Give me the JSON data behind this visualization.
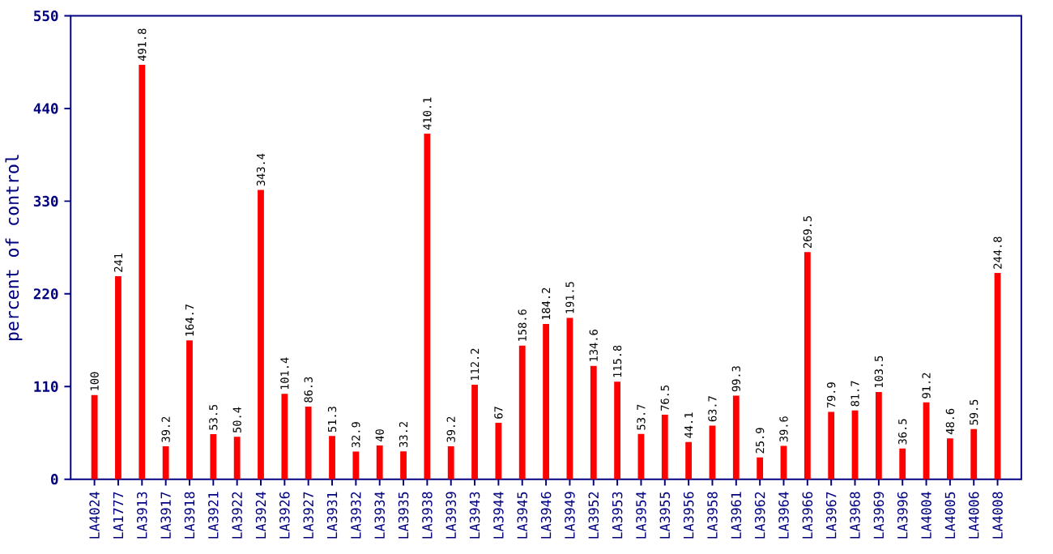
{
  "chart_data": {
    "type": "bar",
    "ylabel": "percent of control",
    "categories": [
      "LA4024",
      "LA1777",
      "LA3913",
      "LA3917",
      "LA3918",
      "LA3921",
      "LA3922",
      "LA3924",
      "LA3926",
      "LA3927",
      "LA3931",
      "LA3932",
      "LA3934",
      "LA3935",
      "LA3938",
      "LA3939",
      "LA3943",
      "LA3944",
      "LA3945",
      "LA3946",
      "LA3949",
      "LA3952",
      "LA3953",
      "LA3954",
      "LA3955",
      "LA3956",
      "LA3958",
      "LA3961",
      "LA3962",
      "LA3964",
      "LA3966",
      "LA3967",
      "LA3968",
      "LA3969",
      "LA3996",
      "LA4004",
      "LA4005",
      "LA4006",
      "LA4008"
    ],
    "values": [
      100,
      241,
      491.8,
      39.2,
      164.7,
      53.5,
      50.4,
      343.4,
      101.4,
      86.3,
      51.3,
      32.9,
      40,
      33.2,
      410.1,
      39.2,
      112.2,
      67,
      158.6,
      184.2,
      191.5,
      134.6,
      115.8,
      53.7,
      76.5,
      44.1,
      63.7,
      99.3,
      25.9,
      39.6,
      269.5,
      79.9,
      81.7,
      103.5,
      36.5,
      91.2,
      48.6,
      59.5,
      244.8
    ],
    "color": "#ff0000",
    "ylim": [
      0,
      550
    ],
    "yticks": [
      0,
      110,
      220,
      330,
      440,
      550
    ],
    "data_labels": true
  }
}
